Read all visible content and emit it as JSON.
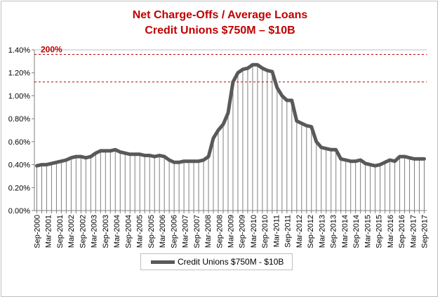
{
  "chart_data": {
    "type": "line",
    "title": "Net Charge-Offs / Average Loans",
    "subtitle": "Credit Unions $750M – $10B",
    "xlabel": "",
    "ylabel": "",
    "ylim": [
      0,
      1.4
    ],
    "y_ticks": [
      "0.00%",
      "0.20%",
      "0.40%",
      "0.60%",
      "0.80%",
      "1.00%",
      "1.20%",
      "1.40%"
    ],
    "grid": "vertical lines",
    "legend_position": "bottom",
    "reference_lines": [
      {
        "label": "200%",
        "y": 1.36,
        "color": "#c00000"
      },
      {
        "y": 1.12,
        "color": "#c00000"
      }
    ],
    "x_labels": [
      "Sep-2000",
      "Mar-2001",
      "Sep-2001",
      "Mar-2002",
      "Sep-2002",
      "Mar-2003",
      "Sep-2003",
      "Mar-2004",
      "Sep-2004",
      "Mar-2005",
      "Sep-2005",
      "Mar-2006",
      "Sep-2006",
      "Mar-2007",
      "Sep-2007",
      "Mar-2008",
      "Sep-2008",
      "Mar-2009",
      "Sep-2009",
      "Mar-2010",
      "Sep-2010",
      "Mar-2011",
      "Sep-2011",
      "Mar-2012",
      "Sep-2012",
      "Mar-2013",
      "Sep-2013",
      "Mar-2014",
      "Sep-2014",
      "Mar-2015",
      "Sep-2015",
      "Mar-2016",
      "Sep-2016",
      "Mar-2017",
      "Sep-2017"
    ],
    "series": [
      {
        "name": "Credit Unions $750M - $10B",
        "color": "#595959",
        "values": [
          0.39,
          0.4,
          0.4,
          0.41,
          0.42,
          0.43,
          0.44,
          0.46,
          0.47,
          0.47,
          0.46,
          0.47,
          0.5,
          0.52,
          0.52,
          0.52,
          0.53,
          0.51,
          0.5,
          0.49,
          0.49,
          0.49,
          0.48,
          0.48,
          0.47,
          0.48,
          0.47,
          0.44,
          0.42,
          0.42,
          0.43,
          0.43,
          0.43,
          0.43,
          0.44,
          0.47,
          0.63,
          0.7,
          0.75,
          0.85,
          1.12,
          1.2,
          1.23,
          1.24,
          1.27,
          1.27,
          1.24,
          1.22,
          1.21,
          1.07,
          1.0,
          0.96,
          0.96,
          0.78,
          0.76,
          0.74,
          0.73,
          0.6,
          0.55,
          0.54,
          0.53,
          0.53,
          0.45,
          0.44,
          0.43,
          0.43,
          0.44,
          0.41,
          0.4,
          0.39,
          0.4,
          0.42,
          0.44,
          0.43,
          0.47,
          0.47,
          0.46,
          0.45,
          0.45,
          0.45
        ]
      }
    ]
  }
}
